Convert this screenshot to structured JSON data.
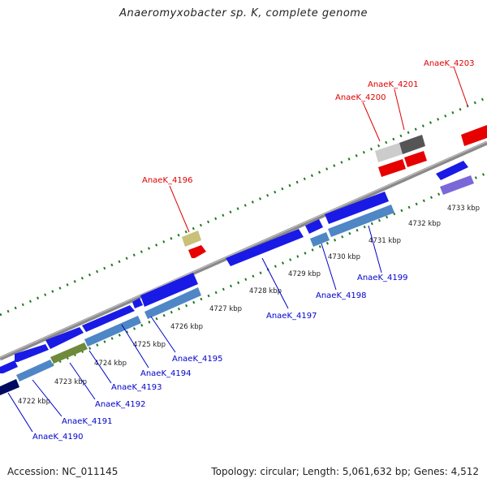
{
  "header": {
    "title": "Anaeromyxobacter sp. K, complete genome"
  },
  "footer": {
    "accession": "Accession: NC_011145",
    "summary": "Topology: circular; Length: 5,061,632 bp; Genes: 4,512"
  },
  "colors": {
    "forward_gene": "#1a1ae6",
    "reverse_gene": "#4f86c6",
    "rna_gene": "#e60000",
    "label_forward": "#0000cc",
    "label_rna": "#dd0000",
    "backbone": "#8a8a8a",
    "tick": "#1e7a1e"
  },
  "axis_ticks": [
    {
      "kbp": 4722,
      "label": "4722 kbp"
    },
    {
      "kbp": 4723,
      "label": "4723 kbp"
    },
    {
      "kbp": 4724,
      "label": "4724 kbp"
    },
    {
      "kbp": 4725,
      "label": "4725 kbp"
    },
    {
      "kbp": 4726,
      "label": "4726 kbp"
    },
    {
      "kbp": 4727,
      "label": "4727 kbp"
    },
    {
      "kbp": 4728,
      "label": "4728 kbp"
    },
    {
      "kbp": 4729,
      "label": "4729 kbp"
    },
    {
      "kbp": 4730,
      "label": "4730 kbp"
    },
    {
      "kbp": 4731,
      "label": "4731 kbp"
    },
    {
      "kbp": 4732,
      "label": "4732 kbp"
    },
    {
      "kbp": 4733,
      "label": "4733 kbp"
    }
  ],
  "gene_labels": [
    {
      "id": "AnaeK_4190",
      "type": "cds"
    },
    {
      "id": "AnaeK_4191",
      "type": "cds"
    },
    {
      "id": "AnaeK_4192",
      "type": "cds"
    },
    {
      "id": "AnaeK_4193",
      "type": "cds"
    },
    {
      "id": "AnaeK_4194",
      "type": "cds"
    },
    {
      "id": "AnaeK_4195",
      "type": "cds"
    },
    {
      "id": "AnaeK_4197",
      "type": "cds"
    },
    {
      "id": "AnaeK_4198",
      "type": "cds"
    },
    {
      "id": "AnaeK_4199",
      "type": "cds"
    },
    {
      "id": "AnaeK_4196",
      "type": "rna"
    },
    {
      "id": "AnaeK_4200",
      "type": "rna"
    },
    {
      "id": "AnaeK_4201",
      "type": "rna"
    },
    {
      "id": "AnaeK_4203",
      "type": "rna"
    }
  ]
}
